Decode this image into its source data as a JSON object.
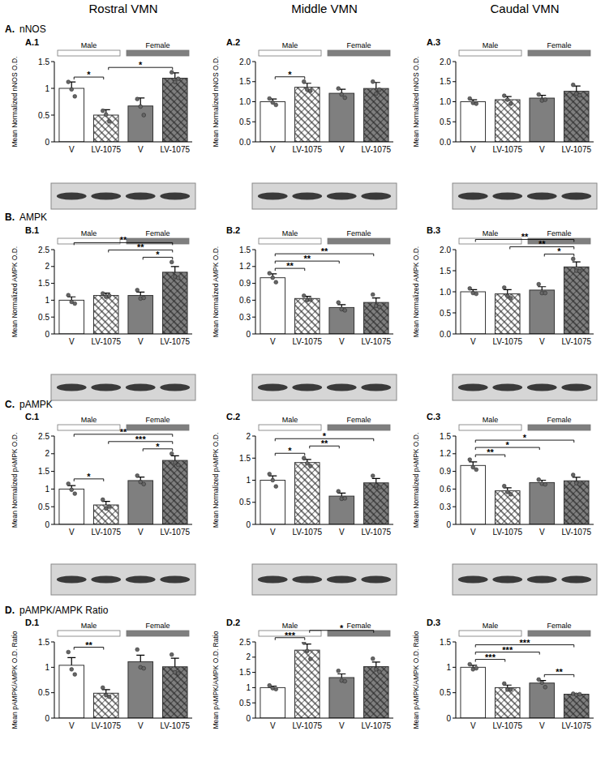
{
  "columns": [
    "Rostral VMN",
    "Middle VMN",
    "Caudal VMN"
  ],
  "rows": [
    {
      "letter": "A.",
      "name": "nNOS"
    },
    {
      "letter": "B.",
      "name": "AMPK"
    },
    {
      "letter": "C.",
      "name": "pAMPK"
    },
    {
      "letter": "D.",
      "name": "pAMPK/AMPK Ratio"
    }
  ],
  "chart_data": [
    {
      "type": "bar",
      "title": "A.1",
      "y_label": "Mean Normalized nNOS O.D.",
      "categories": [
        "V",
        "LV-1075",
        "V",
        "LV-1075"
      ],
      "values": [
        1.0,
        0.5,
        0.67,
        1.19
      ],
      "errors": [
        0.12,
        0.1,
        0.15,
        0.1
      ],
      "points": [
        [
          1.12,
          0.98,
          0.85
        ],
        [
          0.58,
          0.51,
          0.38
        ],
        [
          0.8,
          0.66,
          0.5
        ],
        [
          1.3,
          1.12,
          1.18
        ]
      ],
      "colors": [
        "#ffffff",
        "#ffffff",
        "#7f7f7f",
        "#7f7f7f"
      ],
      "groups": [
        {
          "name": "Male",
          "color": "#ffffff"
        },
        {
          "name": "Female",
          "color": "#7f7f7f"
        }
      ],
      "ylim": [
        0,
        1.5
      ],
      "yticks": [
        0,
        0.5,
        1,
        1.5
      ],
      "significance": [
        {
          "pair": [
            0,
            1
          ],
          "label": "*"
        },
        {
          "pair": [
            1,
            3
          ],
          "label": "*"
        }
      ]
    },
    {
      "type": "bar",
      "title": "A.2",
      "y_label": "Mean Normalized nNOS O.D.",
      "categories": [
        "V",
        "LV-1075",
        "V",
        "LV-1075"
      ],
      "values": [
        1.0,
        1.36,
        1.21,
        1.33
      ],
      "errors": [
        0.07,
        0.1,
        0.1,
        0.15
      ],
      "points": [
        [
          1.08,
          0.98,
          0.92
        ],
        [
          1.5,
          1.3,
          1.27
        ],
        [
          1.33,
          1.18,
          1.1
        ],
        [
          1.5,
          1.2,
          1.3
        ]
      ],
      "colors": [
        "#ffffff",
        "#ffffff",
        "#7f7f7f",
        "#7f7f7f"
      ],
      "groups": [
        {
          "name": "Male",
          "color": "#ffffff"
        },
        {
          "name": "Female",
          "color": "#7f7f7f"
        }
      ],
      "ylim": [
        0,
        2
      ],
      "yticks": [
        {
          "value": 0,
          "label": "0.0"
        },
        {
          "value": 0.5,
          "label": "0.5"
        },
        {
          "value": 1,
          "label": "1.0"
        },
        {
          "value": 1.5,
          "label": "1.5"
        },
        {
          "value": 2,
          "label": "2.0"
        }
      ],
      "significance": [
        {
          "pair": [
            0,
            1
          ],
          "label": "*"
        }
      ]
    },
    {
      "type": "bar",
      "title": "A.3",
      "y_label": "Mean Normalized nNOS O.D.",
      "categories": [
        "V",
        "LV-1075",
        "V",
        "LV-1075"
      ],
      "values": [
        1.0,
        1.05,
        1.09,
        1.26
      ],
      "errors": [
        0.05,
        0.08,
        0.07,
        0.13
      ],
      "points": [
        [
          1.08,
          0.97,
          0.95
        ],
        [
          1.15,
          1.05,
          0.95
        ],
        [
          1.18,
          1.03,
          1.05
        ],
        [
          1.42,
          1.2,
          1.16
        ]
      ],
      "colors": [
        "#ffffff",
        "#ffffff",
        "#7f7f7f",
        "#7f7f7f"
      ],
      "groups": [
        {
          "name": "Male",
          "color": "#ffffff"
        },
        {
          "name": "Female",
          "color": "#7f7f7f"
        }
      ],
      "ylim": [
        0,
        2
      ],
      "yticks": [
        {
          "value": 0,
          "label": "0.0"
        },
        {
          "value": 0.5,
          "label": "0.5"
        },
        {
          "value": 1,
          "label": "1.0"
        },
        {
          "value": 1.5,
          "label": "1.5"
        },
        {
          "value": 2,
          "label": "2.0"
        }
      ],
      "significance": []
    },
    {
      "type": "bar",
      "title": "B.1",
      "y_label": "Mean Normalized AMPK O.D.",
      "categories": [
        "V",
        "LV-1075",
        "V",
        "LV-1075"
      ],
      "values": [
        1.0,
        1.14,
        1.14,
        1.83
      ],
      "errors": [
        0.1,
        0.07,
        0.1,
        0.17
      ],
      "points": [
        [
          1.15,
          0.95,
          0.9
        ],
        [
          1.2,
          1.1,
          1.13
        ],
        [
          1.3,
          1.05,
          1.07
        ],
        [
          2.13,
          1.7,
          1.66
        ]
      ],
      "colors": [
        "#ffffff",
        "#ffffff",
        "#7f7f7f",
        "#7f7f7f"
      ],
      "groups": [
        {
          "name": "Male",
          "color": "#ffffff"
        },
        {
          "name": "Female",
          "color": "#7f7f7f"
        }
      ],
      "ylim": [
        0,
        2.5
      ],
      "yticks": [
        0,
        0.5,
        1,
        1.5,
        2,
        2.5
      ],
      "significance": [
        {
          "pair": [
            2,
            3
          ],
          "label": "*"
        },
        {
          "pair": [
            1,
            3
          ],
          "label": "**"
        },
        {
          "pair": [
            0,
            3
          ],
          "label": "**"
        }
      ]
    },
    {
      "type": "bar",
      "title": "B.2",
      "y_label": "Mean Normalized AMPK O.D.",
      "categories": [
        "V",
        "LV-1075",
        "V",
        "LV-1075"
      ],
      "values": [
        1.0,
        0.63,
        0.47,
        0.56
      ],
      "errors": [
        0.07,
        0.04,
        0.05,
        0.08
      ],
      "points": [
        [
          1.08,
          1.0,
          0.92
        ],
        [
          0.68,
          0.6,
          0.61
        ],
        [
          0.56,
          0.44,
          0.42
        ],
        [
          0.7,
          0.5,
          0.48
        ]
      ],
      "colors": [
        "#ffffff",
        "#ffffff",
        "#7f7f7f",
        "#7f7f7f"
      ],
      "groups": [
        {
          "name": "Male",
          "color": "#ffffff"
        },
        {
          "name": "Female",
          "color": "#7f7f7f"
        }
      ],
      "ylim": [
        0,
        1.5
      ],
      "yticks": [
        0,
        0.3,
        0.6,
        0.9,
        1.2,
        1.5
      ],
      "significance": [
        {
          "pair": [
            0,
            1
          ],
          "label": "**"
        },
        {
          "pair": [
            0,
            2
          ],
          "label": "**"
        },
        {
          "pair": [
            0,
            3
          ],
          "label": "**"
        }
      ]
    },
    {
      "type": "bar",
      "title": "B.3",
      "y_label": "Mean Normalized AMPK O.D.",
      "categories": [
        "V",
        "LV-1075",
        "V",
        "LV-1075"
      ],
      "values": [
        1.0,
        0.95,
        1.04,
        1.59
      ],
      "errors": [
        0.05,
        0.1,
        0.08,
        0.12
      ],
      "points": [
        [
          1.08,
          0.97,
          0.95
        ],
        [
          1.1,
          0.9,
          0.85
        ],
        [
          1.18,
          0.97,
          0.97
        ],
        [
          1.78,
          1.5,
          1.49
        ]
      ],
      "colors": [
        "#ffffff",
        "#ffffff",
        "#7f7f7f",
        "#7f7f7f"
      ],
      "groups": [
        {
          "name": "Male",
          "color": "#ffffff"
        },
        {
          "name": "Female",
          "color": "#7f7f7f"
        }
      ],
      "ylim": [
        0,
        2
      ],
      "yticks": [
        {
          "value": 0,
          "label": "0.0"
        },
        {
          "value": 0.5,
          "label": "0.5"
        },
        {
          "value": 1,
          "label": "1.0"
        },
        {
          "value": 1.5,
          "label": "1.5"
        },
        {
          "value": 2,
          "label": "2.0"
        }
      ],
      "significance": [
        {
          "pair": [
            2,
            3
          ],
          "label": "*"
        },
        {
          "pair": [
            1,
            3
          ],
          "label": "**"
        },
        {
          "pair": [
            0,
            3
          ],
          "label": "**"
        }
      ]
    },
    {
      "type": "bar",
      "title": "C.1",
      "y_label": "Mean Normalized pAMPK O.D.",
      "categories": [
        "V",
        "LV-1075",
        "V",
        "LV-1075"
      ],
      "values": [
        1.0,
        0.55,
        1.24,
        1.81
      ],
      "errors": [
        0.1,
        0.1,
        0.1,
        0.13
      ],
      "points": [
        [
          1.15,
          0.98,
          0.87
        ],
        [
          0.7,
          0.45,
          0.5
        ],
        [
          1.38,
          1.2,
          1.14
        ],
        [
          2.0,
          1.75,
          1.68
        ]
      ],
      "colors": [
        "#ffffff",
        "#ffffff",
        "#7f7f7f",
        "#7f7f7f"
      ],
      "groups": [
        {
          "name": "Male",
          "color": "#ffffff"
        },
        {
          "name": "Female",
          "color": "#7f7f7f"
        }
      ],
      "ylim": [
        0,
        2.5
      ],
      "yticks": [
        0,
        0.5,
        1,
        1.5,
        2,
        2.5
      ],
      "significance": [
        {
          "pair": [
            0,
            1
          ],
          "label": "*"
        },
        {
          "pair": [
            2,
            3
          ],
          "label": "*"
        },
        {
          "pair": [
            1,
            3
          ],
          "label": "***"
        },
        {
          "pair": [
            0,
            3
          ],
          "label": "**"
        }
      ]
    },
    {
      "type": "bar",
      "title": "C.2",
      "y_label": "Mean Normalized pAMPK O.D.",
      "categories": [
        "V",
        "LV-1075",
        "V",
        "LV-1075"
      ],
      "values": [
        1.0,
        1.4,
        0.64,
        0.94
      ],
      "errors": [
        0.1,
        0.07,
        0.07,
        0.1
      ],
      "points": [
        [
          1.14,
          1.0,
          0.86
        ],
        [
          1.5,
          1.38,
          1.32
        ],
        [
          0.75,
          0.58,
          0.59
        ],
        [
          1.1,
          0.88,
          0.84
        ]
      ],
      "colors": [
        "#ffffff",
        "#ffffff",
        "#7f7f7f",
        "#7f7f7f"
      ],
      "groups": [
        {
          "name": "Male",
          "color": "#ffffff"
        },
        {
          "name": "Female",
          "color": "#7f7f7f"
        }
      ],
      "ylim": [
        0,
        2
      ],
      "yticks": [
        0,
        0.5,
        1,
        1.5,
        2
      ],
      "significance": [
        {
          "pair": [
            0,
            1
          ],
          "label": "*"
        },
        {
          "pair": [
            1,
            2
          ],
          "label": "**"
        },
        {
          "pair": [
            0,
            3
          ],
          "label": "*"
        }
      ]
    },
    {
      "type": "bar",
      "title": "C.3",
      "y_label": "Mean Normalized pAMPK O.D.",
      "categories": [
        "V",
        "LV-1075",
        "V",
        "LV-1075"
      ],
      "values": [
        1.0,
        0.57,
        0.71,
        0.74
      ],
      "errors": [
        0.06,
        0.05,
        0.04,
        0.06
      ],
      "points": [
        [
          1.1,
          0.97,
          0.93
        ],
        [
          0.65,
          0.55,
          0.51
        ],
        [
          0.76,
          0.69,
          0.68
        ],
        [
          0.84,
          0.7,
          0.68
        ]
      ],
      "colors": [
        "#ffffff",
        "#ffffff",
        "#7f7f7f",
        "#7f7f7f"
      ],
      "groups": [
        {
          "name": "Male",
          "color": "#ffffff"
        },
        {
          "name": "Female",
          "color": "#7f7f7f"
        }
      ],
      "ylim": [
        0,
        1.5
      ],
      "yticks": [
        0,
        0.3,
        0.6,
        0.9,
        1.2,
        1.5
      ],
      "significance": [
        {
          "pair": [
            0,
            1
          ],
          "label": "**"
        },
        {
          "pair": [
            0,
            2
          ],
          "label": "*"
        },
        {
          "pair": [
            0,
            3
          ],
          "label": "*"
        }
      ]
    },
    {
      "type": "bar",
      "title": "D.1",
      "y_label": "Mean pAMPK/AMPK O.D. Ratio",
      "categories": [
        "V",
        "LV-1075",
        "V",
        "LV-1075"
      ],
      "values": [
        1.04,
        0.49,
        1.11,
        1.01
      ],
      "errors": [
        0.15,
        0.07,
        0.13,
        0.17
      ],
      "points": [
        [
          1.3,
          0.96,
          0.86
        ],
        [
          0.6,
          0.45,
          0.42
        ],
        [
          1.35,
          1.0,
          0.98
        ],
        [
          1.25,
          0.9,
          0.88
        ]
      ],
      "colors": [
        "#ffffff",
        "#ffffff",
        "#7f7f7f",
        "#7f7f7f"
      ],
      "groups": [
        {
          "name": "Male",
          "color": "#ffffff"
        },
        {
          "name": "Female",
          "color": "#7f7f7f"
        }
      ],
      "ylim": [
        0,
        1.5
      ],
      "yticks": [
        0,
        0.5,
        1,
        1.5
      ],
      "significance": [
        {
          "pair": [
            0,
            1
          ],
          "label": "**"
        }
      ]
    },
    {
      "type": "bar",
      "title": "D.2",
      "y_label": "Mean pAMPK/AMPK O.D. Ratio",
      "categories": [
        "V",
        "LV-1075",
        "V",
        "LV-1075"
      ],
      "values": [
        1.0,
        2.23,
        1.33,
        1.69
      ],
      "errors": [
        0.05,
        0.2,
        0.12,
        0.15
      ],
      "points": [
        [
          1.07,
          0.98,
          0.95
        ],
        [
          2.48,
          2.2,
          1.94
        ],
        [
          1.55,
          1.23,
          1.21
        ],
        [
          1.95,
          1.6,
          1.52
        ]
      ],
      "colors": [
        "#ffffff",
        "#ffffff",
        "#7f7f7f",
        "#7f7f7f"
      ],
      "groups": [
        {
          "name": "Male",
          "color": "#ffffff"
        },
        {
          "name": "Female",
          "color": "#7f7f7f"
        }
      ],
      "ylim": [
        0,
        2.5
      ],
      "yticks": [
        0,
        0.5,
        1,
        1.5,
        2,
        2.5
      ],
      "significance": [
        {
          "pair": [
            0,
            1
          ],
          "label": "***"
        },
        {
          "pair": [
            1,
            3
          ],
          "label": "*"
        }
      ]
    },
    {
      "type": "bar",
      "title": "D.3",
      "y_label": "Mean pAMPK/AMPK O.D. Ratio",
      "categories": [
        "V",
        "LV-1075",
        "V",
        "LV-1075"
      ],
      "values": [
        1.0,
        0.6,
        0.69,
        0.47
      ],
      "errors": [
        0.04,
        0.05,
        0.05,
        0.01
      ],
      "points": [
        [
          1.06,
          0.96,
          0.98
        ],
        [
          0.68,
          0.56,
          0.56
        ],
        [
          0.76,
          0.7,
          0.61
        ],
        [
          0.48,
          0.46,
          0.47
        ]
      ],
      "colors": [
        "#ffffff",
        "#ffffff",
        "#7f7f7f",
        "#7f7f7f"
      ],
      "groups": [
        {
          "name": "Male",
          "color": "#ffffff"
        },
        {
          "name": "Female",
          "color": "#7f7f7f"
        }
      ],
      "ylim": [
        0,
        1.5
      ],
      "yticks": [
        0,
        0.5,
        1,
        1.5
      ],
      "significance": [
        {
          "pair": [
            0,
            1
          ],
          "label": "***"
        },
        {
          "pair": [
            2,
            3
          ],
          "label": "**"
        },
        {
          "pair": [
            0,
            2
          ],
          "label": "***"
        },
        {
          "pair": [
            0,
            3
          ],
          "label": "***"
        }
      ]
    }
  ]
}
